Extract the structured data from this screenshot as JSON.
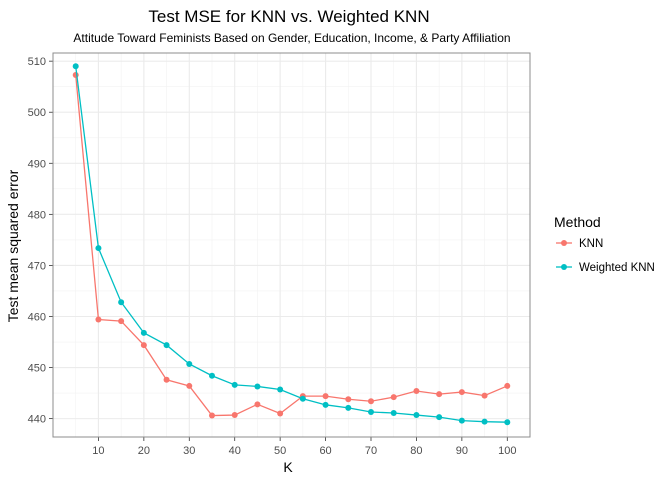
{
  "chart_data": {
    "type": "line",
    "title": "Test MSE for KNN vs. Weighted KNN",
    "subtitle": "Attitude Toward Feminists Based on Gender, Education, Income, & Party Affiliation",
    "xlabel": "K",
    "ylabel": "Test mean squared error",
    "x": [
      5,
      10,
      15,
      20,
      25,
      30,
      35,
      40,
      45,
      50,
      55,
      60,
      65,
      70,
      75,
      80,
      85,
      90,
      95,
      100
    ],
    "xlim": [
      0,
      105
    ],
    "ylim": [
      436.4,
      511.6
    ],
    "x_ticks": [
      10,
      20,
      30,
      40,
      50,
      60,
      70,
      80,
      90,
      100
    ],
    "y_ticks": [
      440,
      450,
      460,
      470,
      480,
      490,
      500,
      510
    ],
    "grid": true,
    "legend_position": "right",
    "legend_title": "Method",
    "series": [
      {
        "name": "KNN",
        "color": "#F8766D",
        "values": [
          507.3,
          459.4,
          459.1,
          454.4,
          447.6,
          446.4,
          440.6,
          440.7,
          442.8,
          441.0,
          444.4,
          444.4,
          443.8,
          443.4,
          444.2,
          445.4,
          444.8,
          445.2,
          444.5,
          446.4
        ]
      },
      {
        "name": "Weighted KNN",
        "color": "#00BFC4",
        "values": [
          509.0,
          473.4,
          462.8,
          456.8,
          454.4,
          450.7,
          448.4,
          446.6,
          446.3,
          445.7,
          443.9,
          442.7,
          442.1,
          441.3,
          441.1,
          440.7,
          440.3,
          439.6,
          439.4,
          439.3
        ]
      }
    ]
  }
}
